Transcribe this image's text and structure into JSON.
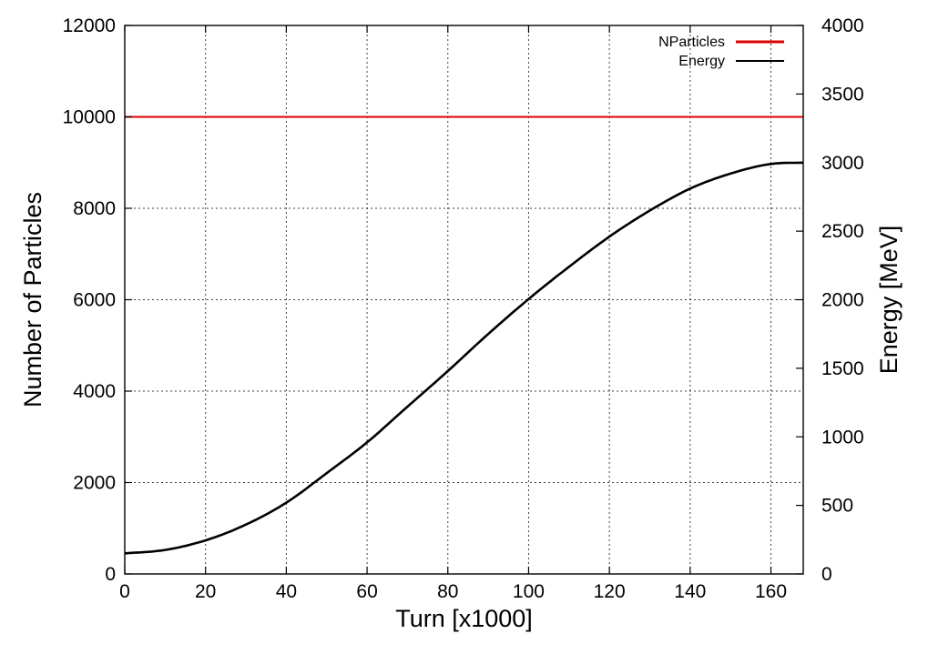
{
  "chart_data": {
    "type": "line",
    "xlabel": "Turn [x1000]",
    "ylabel": "Number of Particles",
    "y2label": "Energy [MeV]",
    "xlim": [
      0,
      168
    ],
    "ylim": [
      0,
      12000
    ],
    "y2lim": [
      0,
      4000
    ],
    "x_ticks": [
      0,
      20,
      40,
      60,
      80,
      100,
      120,
      140,
      160
    ],
    "y_ticks": [
      0,
      2000,
      4000,
      6000,
      8000,
      10000,
      12000
    ],
    "y2_ticks": [
      0,
      500,
      1000,
      1500,
      2000,
      2500,
      3000,
      3500,
      4000
    ],
    "grid": true,
    "legend_position": "top-right",
    "series": [
      {
        "name": "NParticles",
        "axis": "left",
        "color": "#dd0000",
        "x": [
          0,
          168
        ],
        "y": [
          10000,
          10000
        ]
      },
      {
        "name": "Energy",
        "axis": "right",
        "color": "#000000",
        "x": [
          0,
          10,
          20,
          30,
          40,
          50,
          60,
          70,
          80,
          90,
          100,
          110,
          120,
          130,
          140,
          150,
          160,
          168
        ],
        "y": [
          150,
          175,
          245,
          360,
          520,
          735,
          960,
          1220,
          1480,
          1750,
          2005,
          2240,
          2460,
          2650,
          2810,
          2920,
          2990,
          3000
        ]
      }
    ]
  }
}
